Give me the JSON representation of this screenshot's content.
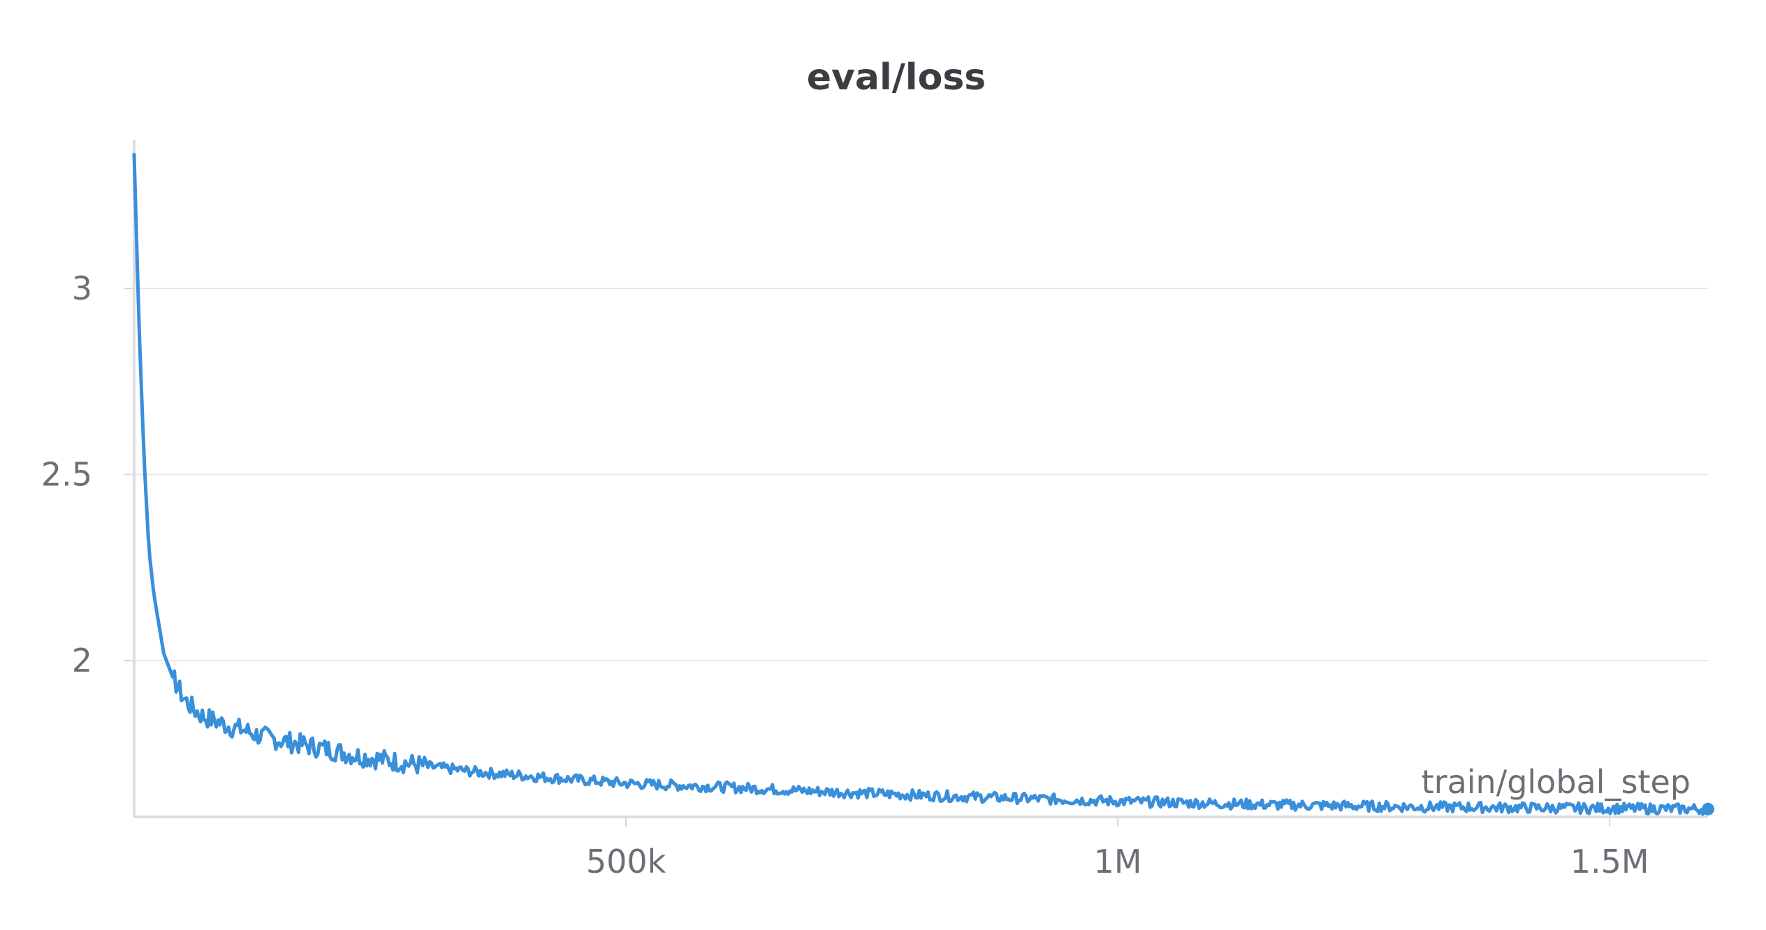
{
  "chart_data": {
    "type": "line",
    "title": "eval/loss",
    "xlabel": "train/global_step",
    "ylabel": "",
    "xlim": [
      0,
      1600000
    ],
    "ylim": [
      1.58,
      3.4
    ],
    "x_ticks": [
      500000,
      1000000,
      1500000
    ],
    "x_tick_labels": [
      "500k",
      "1M",
      "1.5M"
    ],
    "y_ticks": [
      3,
      2.5,
      2
    ],
    "y_tick_labels": [
      "3",
      "2.5",
      "2"
    ],
    "grid": true,
    "legend": "none",
    "line_color": "#3a8fdb",
    "series": [
      {
        "x": [
          0,
          5000,
          10000,
          15000,
          20000,
          25000,
          30000,
          40000,
          50000,
          60000,
          70000,
          80000,
          90000,
          100000,
          110000,
          125000,
          140000,
          160000,
          180000,
          200000,
          225000,
          250000,
          275000,
          300000,
          325000,
          350000,
          375000,
          400000,
          425000,
          450000,
          475000,
          500000,
          550000,
          600000,
          650000,
          700000,
          750000,
          800000,
          850000,
          900000,
          950000,
          1000000,
          1050000,
          1100000,
          1150000,
          1200000,
          1250000,
          1300000,
          1350000,
          1400000,
          1450000,
          1500000,
          1550000,
          1600000
        ],
        "values": [
          3.36,
          2.9,
          2.55,
          2.3,
          2.18,
          2.1,
          2.02,
          1.95,
          1.9,
          1.87,
          1.85,
          1.84,
          1.83,
          1.82,
          1.815,
          1.8,
          1.79,
          1.78,
          1.77,
          1.76,
          1.745,
          1.735,
          1.725,
          1.715,
          1.708,
          1.7,
          1.695,
          1.69,
          1.685,
          1.68,
          1.675,
          1.67,
          1.665,
          1.66,
          1.654,
          1.648,
          1.643,
          1.638,
          1.634,
          1.63,
          1.626,
          1.622,
          1.619,
          1.616,
          1.613,
          1.611,
          1.609,
          1.607,
          1.606,
          1.605,
          1.604,
          1.603,
          1.602,
          1.601
        ]
      }
    ]
  }
}
